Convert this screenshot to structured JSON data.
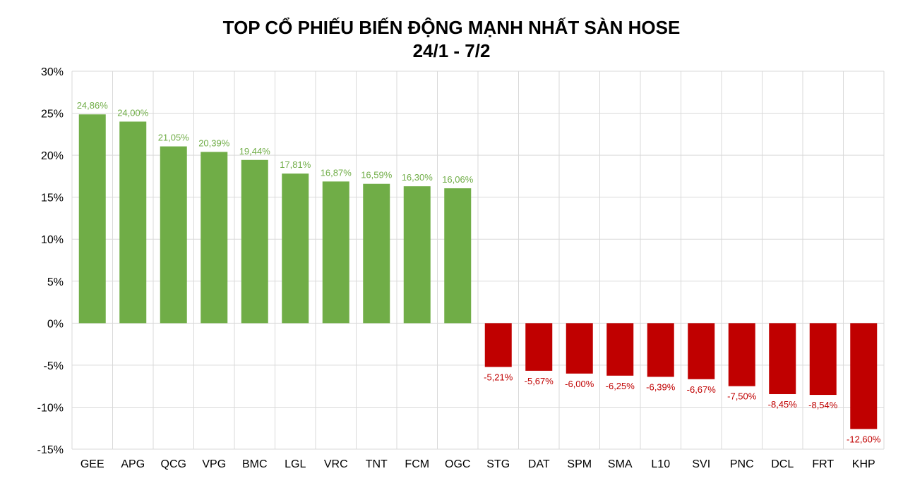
{
  "chart_data": {
    "type": "bar",
    "title": "TOP CỔ PHIẾU BIẾN ĐỘNG MẠNH NHẤT SÀN HOSE",
    "subtitle": "24/1 - 7/2",
    "xlabel": "",
    "ylabel": "",
    "ylim": [
      -15,
      30
    ],
    "yticks": [
      30,
      25,
      20,
      15,
      10,
      5,
      0,
      -5,
      -10,
      -15
    ],
    "ytick_labels": [
      "30%",
      "25%",
      "20%",
      "15%",
      "10%",
      "5%",
      "0%",
      "-5%",
      "-10%",
      "-15%"
    ],
    "grid": true,
    "legend": "none",
    "categories": [
      "GEE",
      "APG",
      "QCG",
      "VPG",
      "BMC",
      "LGL",
      "VRC",
      "TNT",
      "FCM",
      "OGC",
      "STG",
      "DAT",
      "SPM",
      "SMA",
      "L10",
      "SVI",
      "PNC",
      "DCL",
      "FRT",
      "KHP"
    ],
    "values": [
      24.86,
      24.0,
      21.05,
      20.39,
      19.44,
      17.81,
      16.87,
      16.59,
      16.3,
      16.06,
      -5.21,
      -5.67,
      -6.0,
      -6.25,
      -6.39,
      -6.67,
      -7.5,
      -8.45,
      -8.54,
      -12.6
    ],
    "data_labels": [
      "24,86%",
      "24,00%",
      "21,05%",
      "20,39%",
      "19,44%",
      "17,81%",
      "16,87%",
      "16,59%",
      "16,30%",
      "16,06%",
      "-5,21%",
      "-5,67%",
      "-6,00%",
      "-6,25%",
      "-6,39%",
      "-6,67%",
      "-7,50%",
      "-8,45%",
      "-8,54%",
      "-12,60%"
    ],
    "colors": {
      "positive": "#70ad47",
      "negative": "#c00000",
      "grid": "#d9d9d9"
    }
  }
}
